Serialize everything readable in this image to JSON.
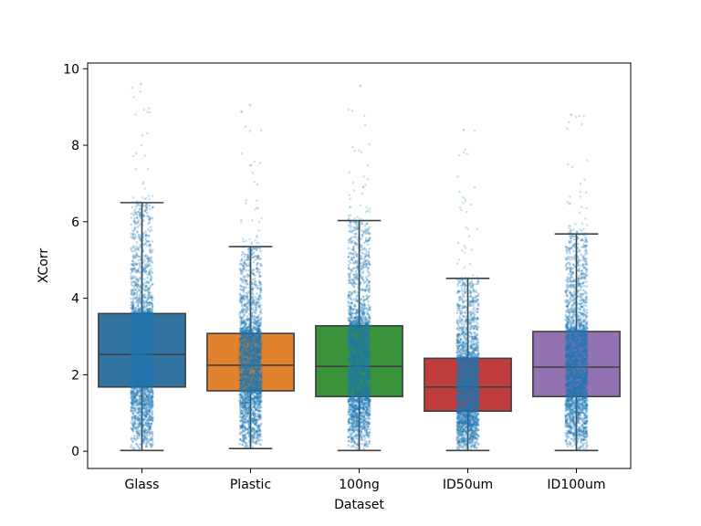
{
  "chart_data": {
    "type": "box",
    "title": "",
    "xlabel": "Dataset",
    "ylabel": "XCorr",
    "ylim": [
      -0.45,
      10.15
    ],
    "yticks": [
      0,
      2,
      4,
      6,
      8,
      10
    ],
    "grid": false,
    "categories": [
      "Glass",
      "Plastic",
      "100ng",
      "ID50um",
      "ID100um"
    ],
    "box_colors": [
      "#3274a1",
      "#e1812c",
      "#3a923a",
      "#c03d3e",
      "#9372b2"
    ],
    "strip_color": "#1f77b4",
    "boxes": [
      {
        "category": "Glass",
        "whisker_low": 0.02,
        "q1": 1.68,
        "median": 2.53,
        "q3": 3.6,
        "whisker_high": 6.5,
        "point_max": 9.6
      },
      {
        "category": "Plastic",
        "whisker_low": 0.07,
        "q1": 1.58,
        "median": 2.25,
        "q3": 3.08,
        "whisker_high": 5.35,
        "point_max": 9.05
      },
      {
        "category": "100ng",
        "whisker_low": 0.02,
        "q1": 1.43,
        "median": 2.22,
        "q3": 3.28,
        "whisker_high": 6.03,
        "point_max": 9.55
      },
      {
        "category": "ID50um",
        "whisker_low": 0.02,
        "q1": 1.05,
        "median": 1.68,
        "q3": 2.43,
        "whisker_high": 4.52,
        "point_max": 8.4
      },
      {
        "category": "ID100um",
        "whisker_low": 0.02,
        "q1": 1.43,
        "median": 2.2,
        "q3": 3.13,
        "whisker_high": 5.68,
        "point_max": 8.8
      }
    ]
  }
}
